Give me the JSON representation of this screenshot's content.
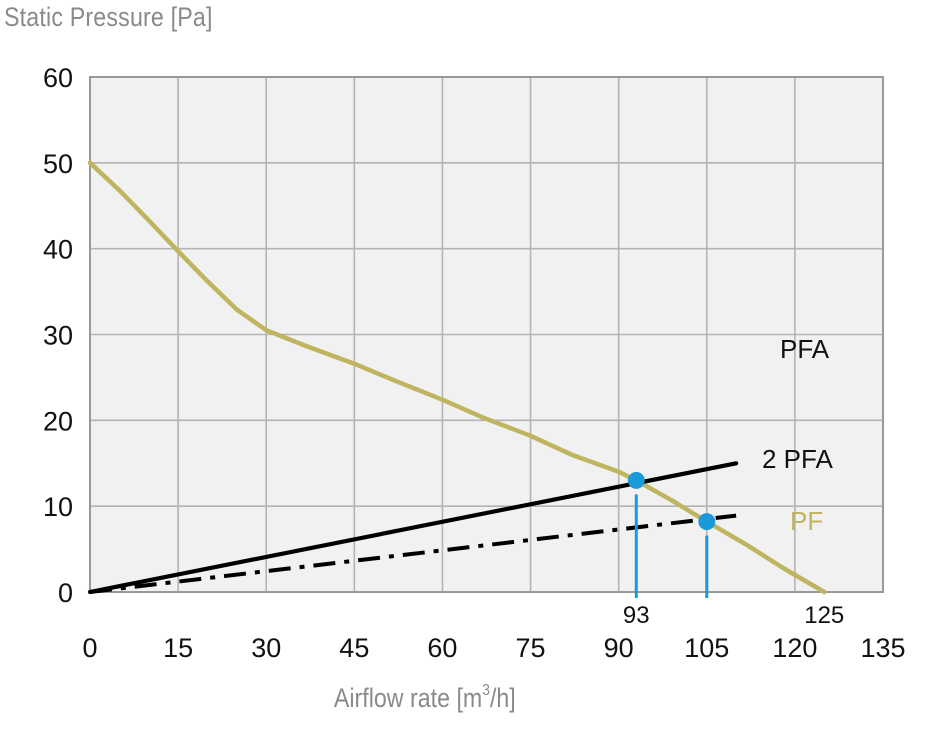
{
  "chart_data": {
    "type": "line",
    "title": "",
    "ylabel": "Static Pressure [Pa]",
    "xlabel_parts": {
      "before": "Airflow rate [m",
      "sup": "3",
      "after": "/h]"
    },
    "xlabel": "Airflow rate [m3/h]",
    "xlim": [
      0,
      135
    ],
    "ylim": [
      0,
      60
    ],
    "grid": true,
    "xticks": [
      0,
      15,
      30,
      45,
      60,
      75,
      90,
      105,
      120,
      135
    ],
    "yticks": [
      0,
      10,
      20,
      30,
      40,
      50,
      60
    ],
    "colors": {
      "plot_background": "#f1f1f1",
      "grid": "#b4b4b4",
      "frame": "#999999",
      "pf_curve": "#bfb45f",
      "system_curves": "#000000",
      "operating_point": "#1a9ad9"
    },
    "series": [
      {
        "name": "PF",
        "label": "PF",
        "style": "solid",
        "color": "#bfb45f",
        "x": [
          0,
          5,
          10,
          15,
          20,
          25,
          30,
          37,
          45,
          52,
          60,
          67,
          75,
          82,
          90,
          93,
          99,
          105,
          112,
          118,
          125
        ],
        "y": [
          50,
          46.8,
          43.3,
          39.7,
          36.2,
          32.9,
          30.5,
          28.6,
          26.6,
          24.6,
          22.4,
          20.3,
          18.2,
          16.0,
          14.0,
          13.0,
          10.7,
          8.2,
          5.4,
          2.8,
          0
        ]
      },
      {
        "name": "2 PFA",
        "label": "2 PFA",
        "style": "solid",
        "color": "#000000",
        "x": [
          0,
          110
        ],
        "y": [
          0,
          15.0
        ]
      },
      {
        "name": "PFA",
        "label": "PFA",
        "style": "dash-dot",
        "color": "#000000",
        "x": [
          0,
          110
        ],
        "y": [
          0,
          8.9
        ]
      }
    ],
    "operating_points": [
      {
        "series": "2 PFA",
        "x": 93,
        "y": 13.0,
        "label": "93"
      },
      {
        "series": "PFA",
        "x": 105,
        "y": 8.2,
        "label": ""
      }
    ],
    "annotations": [
      {
        "text": "93",
        "x": 93,
        "position": "below-axis"
      },
      {
        "text": "125",
        "x": 125,
        "position": "below-axis"
      },
      {
        "text": "PFA",
        "placement": "right, y≈29"
      },
      {
        "text": "2 PFA",
        "placement": "right, y≈16"
      },
      {
        "text": "PF",
        "placement": "right, y≈8.5"
      }
    ]
  }
}
